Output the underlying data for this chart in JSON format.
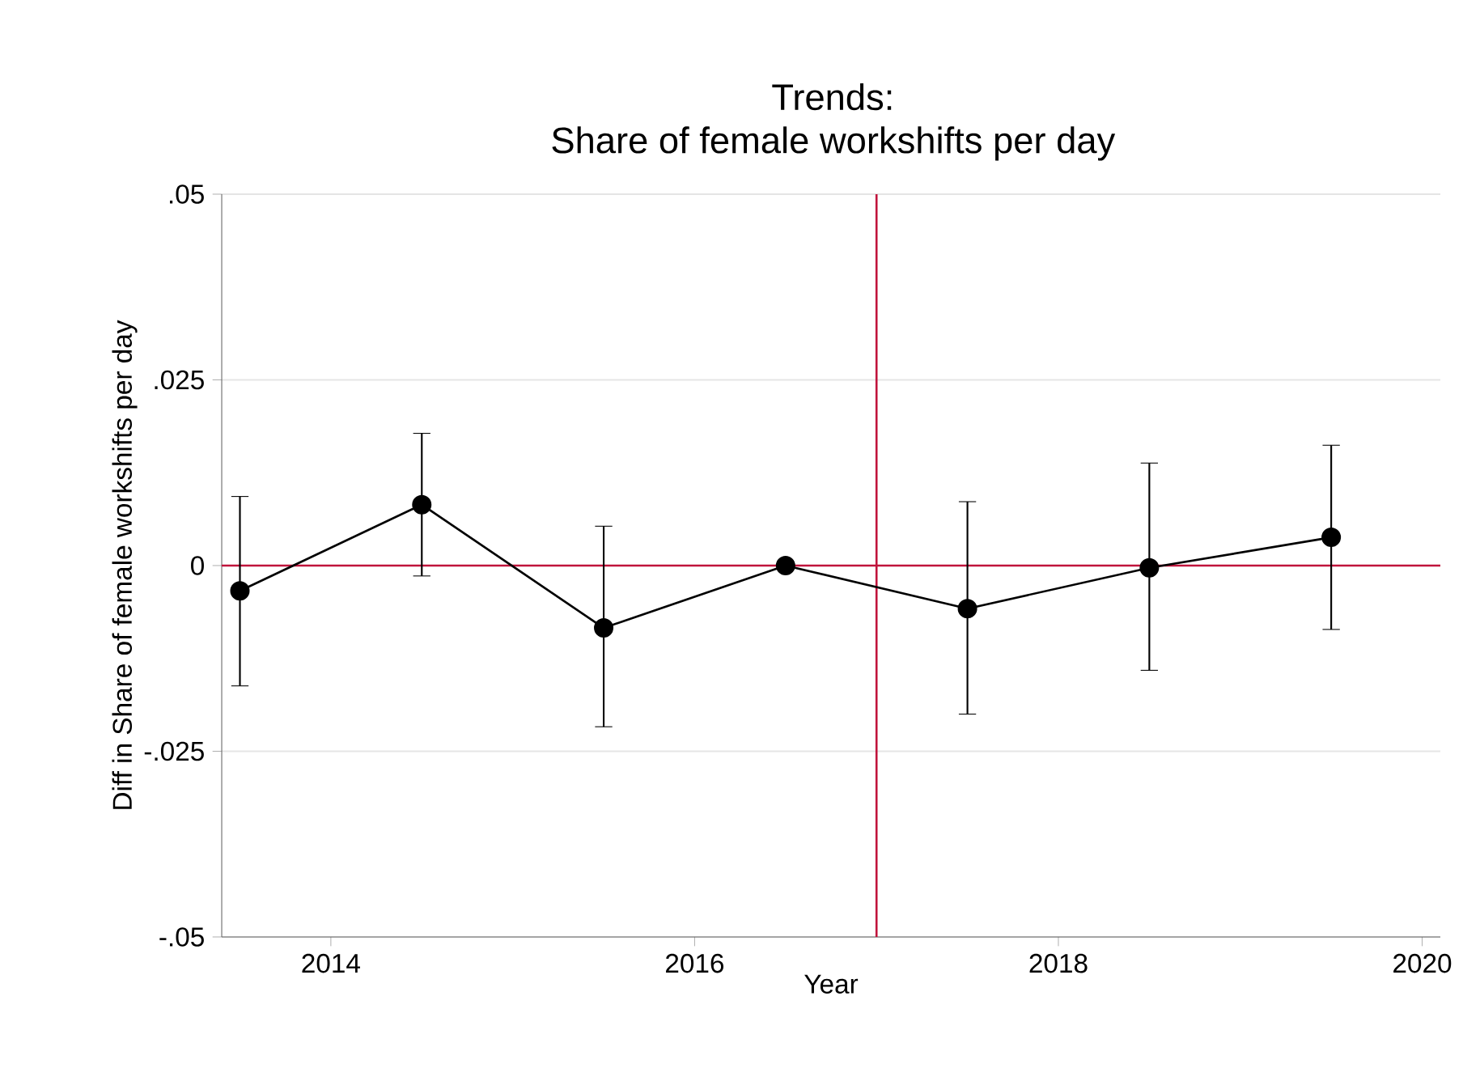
{
  "chart_data": {
    "type": "line",
    "title": "Trends:",
    "subtitle": "Share of female workshifts per day",
    "xlabel": "Year",
    "ylabel": "Diff in Share of female workshifts per day",
    "x": [
      2013.5,
      2014.5,
      2015.5,
      2016.5,
      2017.5,
      2018.5,
      2019.5
    ],
    "series": [
      {
        "color": "#000000",
        "values": [
          -0.0034,
          0.0082,
          -0.0084,
          0.0,
          -0.0058,
          -0.0003,
          0.0038
        ],
        "errors": [
          [
            -0.0162,
            0.0093
          ],
          [
            -0.0014,
            0.0178
          ],
          [
            -0.0217,
            0.0053
          ],
          null,
          [
            -0.02,
            0.0086
          ],
          [
            -0.0141,
            0.0138
          ],
          [
            -0.0086,
            0.0162
          ]
        ]
      }
    ],
    "xlim": [
      2013.4,
      2020.1
    ],
    "ylim": [
      -0.05,
      0.05
    ],
    "xticks": [
      2014,
      2016,
      2018,
      2020
    ],
    "yticks": [
      {
        "value": -0.05,
        "label": "-.05"
      },
      {
        "value": -0.025,
        "label": "-.025"
      },
      {
        "value": 0,
        "label": "0"
      },
      {
        "value": 0.025,
        "label": ".025"
      },
      {
        "value": 0.05,
        "label": ".05"
      }
    ],
    "ref_lines": [
      {
        "axis": "x",
        "value": 2017,
        "color": "#c0143c"
      },
      {
        "axis": "y",
        "value": 0,
        "color": "#c0143c"
      }
    ],
    "grid": "y",
    "marker": "circle",
    "line_style": "solid"
  }
}
